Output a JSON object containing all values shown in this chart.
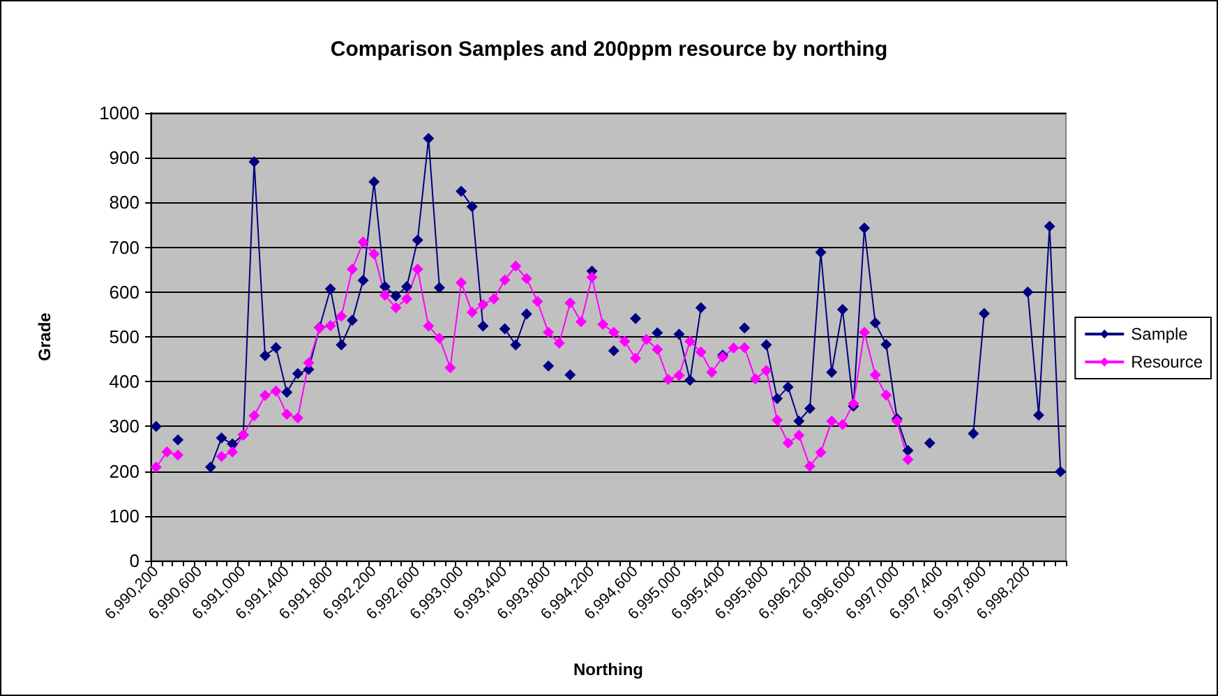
{
  "chart_data": {
    "type": "line",
    "title": "Comparison Samples and 200ppm resource by northing",
    "xlabel": "Northing",
    "ylabel": "Grade",
    "categories": [
      "6,990,200",
      null,
      null,
      null,
      "6,990,600",
      null,
      null,
      null,
      "6,991,000",
      null,
      null,
      null,
      "6,991,400",
      null,
      null,
      null,
      "6,991,800",
      null,
      null,
      null,
      "6,992,200",
      null,
      null,
      null,
      "6,992,600",
      null,
      null,
      null,
      "6,993,000",
      null,
      null,
      null,
      "6,993,400",
      null,
      null,
      null,
      "6,993,800",
      null,
      null,
      null,
      "6,994,200",
      null,
      null,
      null,
      "6,994,600",
      null,
      null,
      null,
      "6,995,000",
      null,
      null,
      null,
      "6,995,400",
      null,
      null,
      null,
      "6,995,800",
      null,
      null,
      null,
      "6,996,200",
      null,
      null,
      null,
      "6,996,600",
      null,
      null,
      null,
      "6,997,000",
      null,
      null,
      null,
      "6,997,400",
      null,
      null,
      null,
      "6,997,800",
      null,
      null,
      null,
      "6,998,200",
      null,
      null,
      null
    ],
    "series": [
      {
        "name": "Sample",
        "color": "#000080",
        "values": [
          300,
          null,
          270,
          null,
          null,
          209,
          274,
          261,
          281,
          891,
          458,
          476,
          376,
          418,
          427,
          521,
          607,
          482,
          537,
          626,
          846,
          612,
          591,
          612,
          716,
          943,
          610,
          null,
          825,
          791,
          524,
          null,
          518,
          482,
          551,
          null,
          435,
          null,
          415,
          null,
          647,
          null,
          469,
          null,
          541,
          null,
          509,
          null,
          506,
          403,
          565,
          null,
          459,
          null,
          520,
          null,
          482,
          362,
          388,
          312,
          340,
          689,
          421,
          561,
          345,
          743,
          531,
          483,
          317,
          246,
          null,
          263,
          null,
          null,
          null,
          284,
          552,
          null,
          null,
          null,
          600,
          325,
          747,
          199
        ]
      },
      {
        "name": "Resource",
        "color": "#ff00ff",
        "values": [
          209,
          243,
          236,
          null,
          null,
          null,
          233,
          243,
          281,
          324,
          369,
          379,
          327,
          319,
          442,
          520,
          525,
          546,
          651,
          712,
          685,
          593,
          565,
          585,
          651,
          524,
          497,
          431,
          621,
          555,
          572,
          585,
          627,
          658,
          630,
          579,
          510,
          486,
          576,
          534,
          633,
          528,
          510,
          490,
          452,
          494,
          472,
          405,
          414,
          490,
          466,
          421,
          455,
          475,
          476,
          406,
          425,
          314,
          263,
          280,
          211,
          242,
          312,
          304,
          351,
          510,
          415,
          370,
          312,
          226,
          null,
          null,
          null,
          null,
          null,
          null,
          null,
          null,
          null,
          null,
          null,
          null,
          null,
          null
        ]
      }
    ],
    "ylim": [
      0,
      1000
    ],
    "yticks": [
      0,
      100,
      200,
      300,
      400,
      500,
      600,
      700,
      800,
      900,
      1000
    ],
    "grid": "y",
    "legend": "right",
    "marker": "diamond",
    "line_style": "solid"
  }
}
